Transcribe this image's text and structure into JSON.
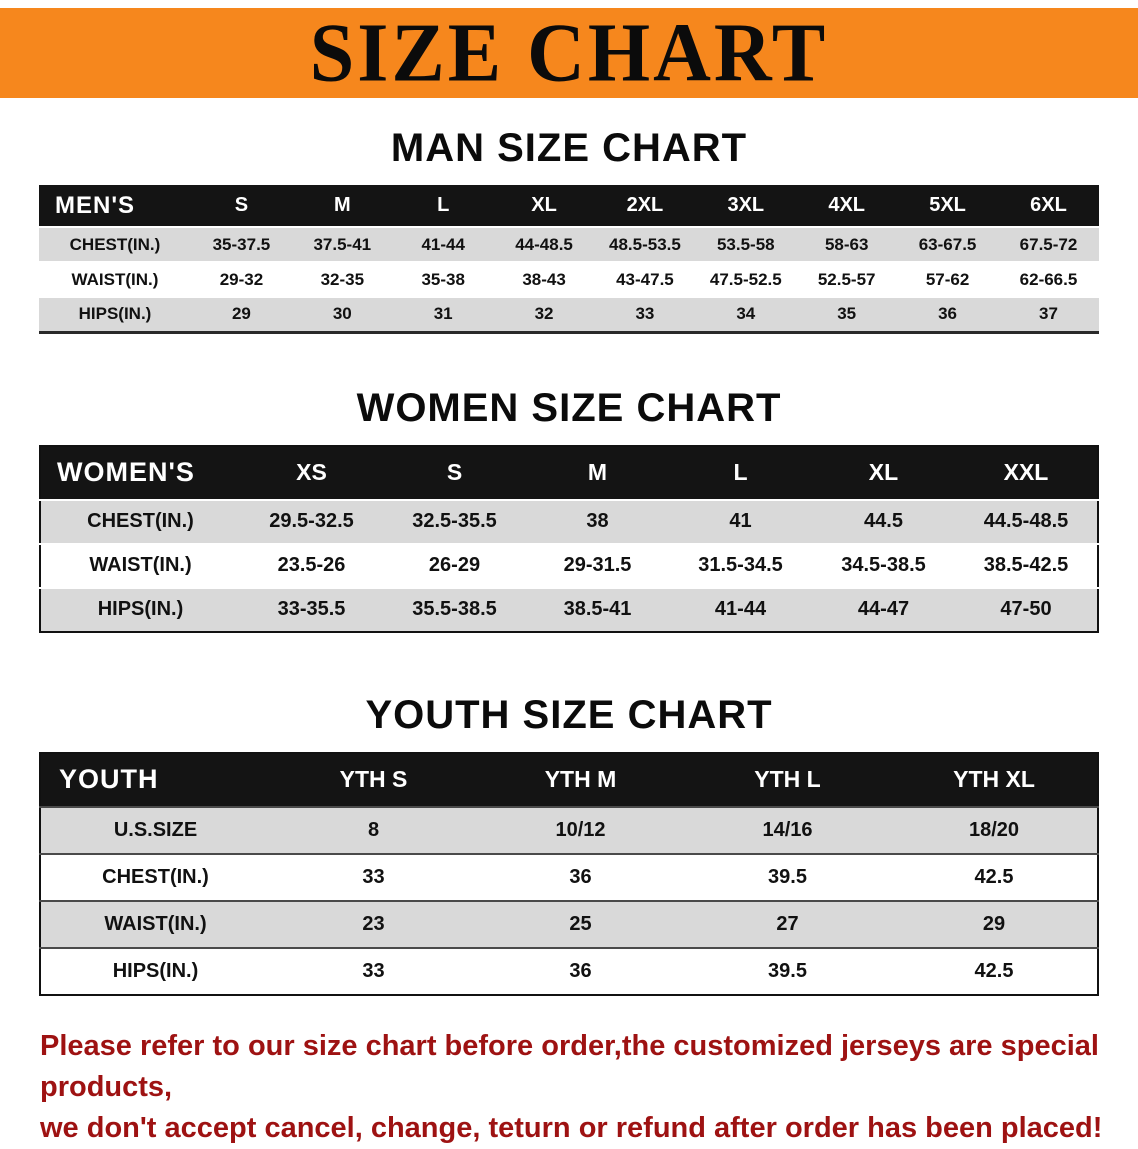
{
  "banner": {
    "title": "SIZE CHART"
  },
  "sections": [
    {
      "id": "men",
      "heading": "MAN SIZE CHART",
      "table": {
        "header": [
          "MEN'S",
          "S",
          "M",
          "L",
          "XL",
          "2XL",
          "3XL",
          "4XL",
          "5XL",
          "6XL"
        ],
        "rows": [
          [
            "CHEST(IN.)",
            "35-37.5",
            "37.5-41",
            "41-44",
            "44-48.5",
            "48.5-53.5",
            "53.5-58",
            "58-63",
            "63-67.5",
            "67.5-72"
          ],
          [
            "WAIST(IN.)",
            "29-32",
            "32-35",
            "35-38",
            "38-43",
            "43-47.5",
            "47.5-52.5",
            "52.5-57",
            "57-62",
            "62-66.5"
          ],
          [
            "HIPS(IN.)",
            "29",
            "30",
            "31",
            "32",
            "33",
            "34",
            "35",
            "36",
            "37"
          ]
        ]
      }
    },
    {
      "id": "women",
      "heading": "WOMEN SIZE CHART",
      "table": {
        "header": [
          "WOMEN'S",
          "XS",
          "S",
          "M",
          "L",
          "XL",
          "XXL"
        ],
        "rows": [
          [
            "CHEST(IN.)",
            "29.5-32.5",
            "32.5-35.5",
            "38",
            "41",
            "44.5",
            "44.5-48.5"
          ],
          [
            "WAIST(IN.)",
            "23.5-26",
            "26-29",
            "29-31.5",
            "31.5-34.5",
            "34.5-38.5",
            "38.5-42.5"
          ],
          [
            "HIPS(IN.)",
            "33-35.5",
            "35.5-38.5",
            "38.5-41",
            "41-44",
            "44-47",
            "47-50"
          ]
        ]
      }
    },
    {
      "id": "youth",
      "heading": "YOUTH SIZE CHART",
      "table": {
        "header": [
          "YOUTH",
          "YTH S",
          "YTH M",
          "YTH L",
          "YTH XL"
        ],
        "rows": [
          [
            "U.S.SIZE",
            "8",
            "10/12",
            "14/16",
            "18/20"
          ],
          [
            "CHEST(IN.)",
            "33",
            "36",
            "39.5",
            "42.5"
          ],
          [
            "WAIST(IN.)",
            "23",
            "25",
            "27",
            "29"
          ],
          [
            "HIPS(IN.)",
            "33",
            "36",
            "39.5",
            "42.5"
          ]
        ]
      }
    }
  ],
  "footer": {
    "line1": "Please refer to our size chart before order,the customized jerseys are special products,",
    "line2": "we don't accept cancel, change, teturn or refund after order has been placed!"
  },
  "colors": {
    "banner_bg": "#F6871D",
    "header_row_bg": "#141414",
    "header_row_text": "#ffffff",
    "alt_row_bg": "#d9d9d9",
    "heading_text": "#0b0b0b",
    "notice_text": "#9e1212"
  }
}
